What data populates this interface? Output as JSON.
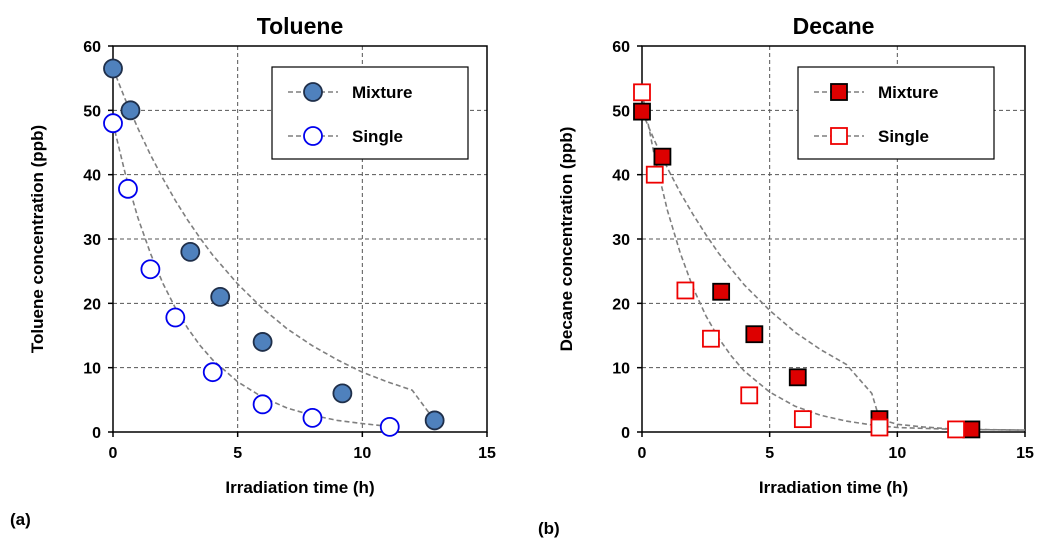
{
  "panel_labels": [
    "(a)",
    "(b)"
  ],
  "chart_data": [
    {
      "type": "scatter",
      "title": "Toluene",
      "xlabel": "Irradiation time (h)",
      "ylabel": "Toluene concentration  (ppb)",
      "xlim": [
        0,
        15
      ],
      "ylim": [
        0,
        60
      ],
      "xticks": [
        0,
        5,
        10,
        15
      ],
      "yticks": [
        0,
        10,
        20,
        30,
        40,
        50,
        60
      ],
      "grid": true,
      "legend_position": "top-right",
      "marker": "circle",
      "series": [
        {
          "name": "Mixture",
          "fill": "#4f81bd",
          "stroke": "#1f2f4a",
          "x": [
            0,
            0.7,
            3.1,
            4.3,
            6.0,
            9.2,
            12.9
          ],
          "y": [
            56.5,
            50,
            28,
            21,
            14,
            6,
            1.8
          ],
          "trend": [
            [
              0,
              56.5
            ],
            [
              0.5,
              51.6
            ],
            [
              1,
              47.2
            ],
            [
              1.5,
              43.1
            ],
            [
              2,
              39.4
            ],
            [
              2.5,
              36.0
            ],
            [
              3,
              32.9
            ],
            [
              3.5,
              30.1
            ],
            [
              4,
              27.5
            ],
            [
              5,
              23.0
            ],
            [
              6,
              19.2
            ],
            [
              7,
              16.0
            ],
            [
              8,
              13.4
            ],
            [
              9,
              11.2
            ],
            [
              10,
              9.3
            ],
            [
              11,
              7.8
            ],
            [
              12,
              6.5
            ],
            [
              12.9,
              1.8
            ]
          ]
        },
        {
          "name": "Single",
          "fill": "#ffffff",
          "stroke": "#0000ee",
          "x": [
            0,
            0.6,
            1.5,
            2.5,
            4.0,
            6.0,
            8.0,
            11.1
          ],
          "y": [
            48,
            37.8,
            25.3,
            17.8,
            9.3,
            4.3,
            2.2,
            0.8
          ],
          "trend": [
            [
              0,
              48
            ],
            [
              0.5,
              40.0
            ],
            [
              1,
              33.3
            ],
            [
              1.5,
              27.8
            ],
            [
              2,
              23.1
            ],
            [
              2.5,
              19.3
            ],
            [
              3,
              16.1
            ],
            [
              3.5,
              13.4
            ],
            [
              4,
              11.2
            ],
            [
              5,
              7.8
            ],
            [
              6,
              5.4
            ],
            [
              7,
              3.7
            ],
            [
              8,
              2.6
            ],
            [
              9,
              1.8
            ],
            [
              10,
              1.3
            ],
            [
              11,
              0.9
            ],
            [
              11.1,
              0.8
            ]
          ]
        }
      ]
    },
    {
      "type": "scatter",
      "title": "Decane",
      "xlabel": "Irradiation time (h)",
      "ylabel": "Decane concentration  (ppb)",
      "xlim": [
        0,
        15
      ],
      "ylim": [
        0,
        60
      ],
      "xticks": [
        0,
        5,
        10,
        15
      ],
      "yticks": [
        0,
        10,
        20,
        30,
        40,
        50,
        60
      ],
      "grid": true,
      "legend_position": "top-right",
      "marker": "square",
      "series": [
        {
          "name": "Mixture",
          "fill": "#dd0000",
          "stroke": "#000000",
          "x": [
            0,
            0.8,
            3.1,
            4.4,
            6.1,
            9.3,
            12.9
          ],
          "y": [
            49.8,
            42.8,
            21.8,
            15.2,
            8.5,
            2.0,
            0.4
          ],
          "trend": [
            [
              0,
              49.8
            ],
            [
              0.5,
              45.2
            ],
            [
              1,
              41.0
            ],
            [
              1.5,
              37.2
            ],
            [
              2,
              33.8
            ],
            [
              2.5,
              30.7
            ],
            [
              3,
              27.8
            ],
            [
              3.5,
              25.3
            ],
            [
              4,
              22.9
            ],
            [
              5,
              18.9
            ],
            [
              6,
              15.5
            ],
            [
              7,
              12.8
            ],
            [
              8,
              10.5
            ],
            [
              9,
              6.0
            ],
            [
              9.3,
              2.0
            ],
            [
              10,
              1.2
            ],
            [
              11,
              0.8
            ],
            [
              12,
              0.5
            ],
            [
              12.9,
              0.4
            ],
            [
              15,
              0.3
            ]
          ]
        },
        {
          "name": "Single",
          "fill": "#ffffff",
          "stroke": "#ee0000",
          "x": [
            0,
            0.5,
            1.7,
            2.7,
            4.2,
            6.3,
            9.3,
            12.3
          ],
          "y": [
            52.8,
            40.0,
            22.0,
            14.5,
            5.7,
            2.0,
            0.7,
            0.4
          ],
          "trend": [
            [
              0,
              52.8
            ],
            [
              0.5,
              42.6
            ],
            [
              1,
              34.4
            ],
            [
              1.5,
              27.8
            ],
            [
              2,
              22.4
            ],
            [
              2.5,
              18.1
            ],
            [
              3,
              14.6
            ],
            [
              3.5,
              11.8
            ],
            [
              4,
              9.5
            ],
            [
              5,
              6.2
            ],
            [
              6,
              4.0
            ],
            [
              7,
              2.6
            ],
            [
              8,
              1.7
            ],
            [
              9,
              1.1
            ],
            [
              10,
              0.7
            ],
            [
              12.3,
              0.4
            ],
            [
              15,
              0.3
            ]
          ]
        }
      ]
    }
  ]
}
